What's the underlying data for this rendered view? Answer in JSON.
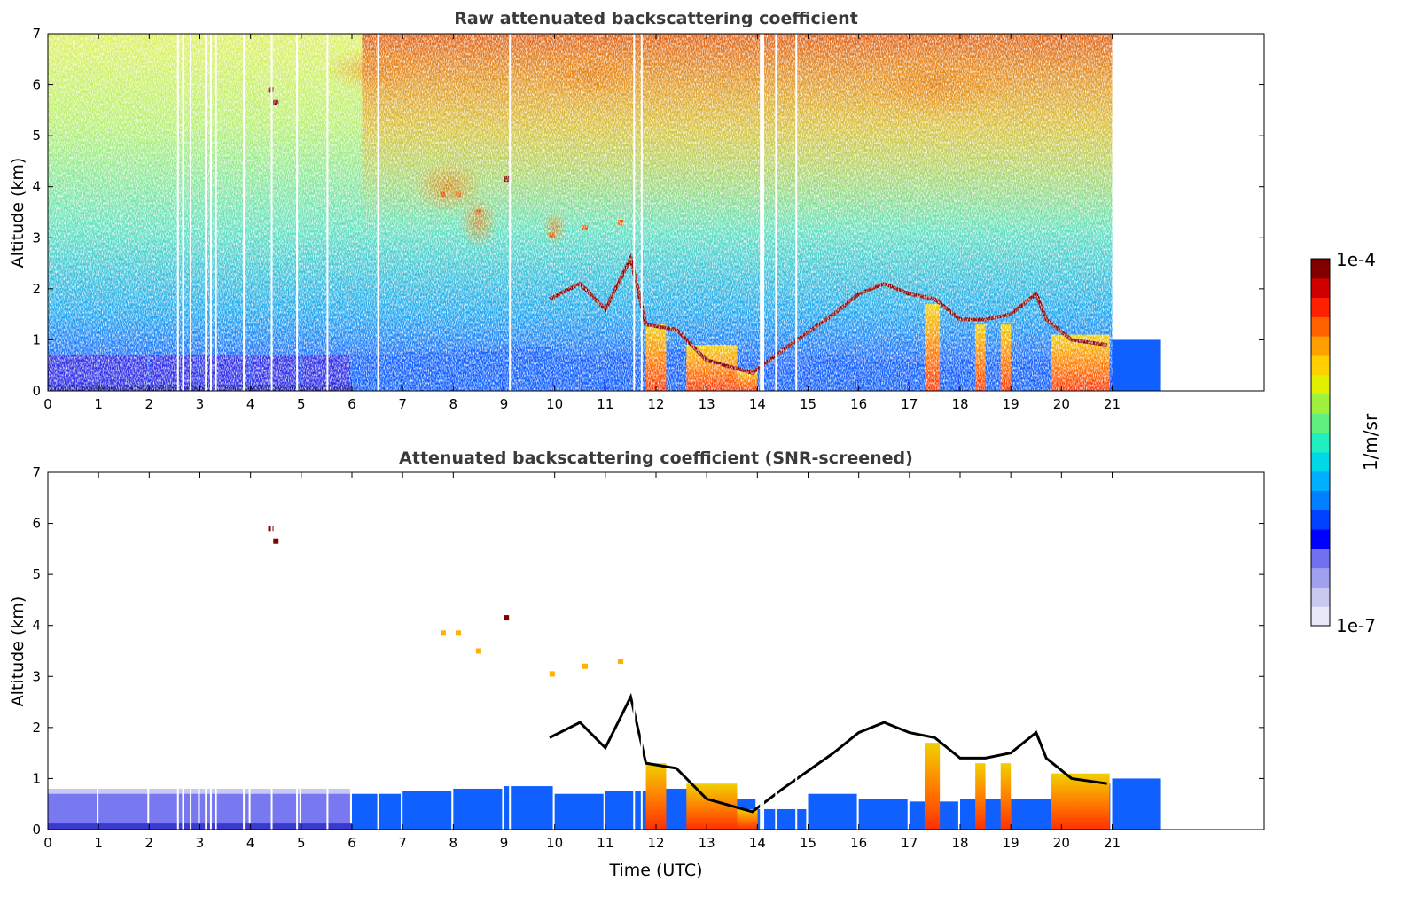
{
  "chart_data": [
    {
      "type": "heatmap",
      "title": "Raw attenuated backscattering coefficient",
      "xlabel": "",
      "ylabel": "Altitude (km)",
      "xlim": [
        0,
        24
      ],
      "ylim": [
        0,
        7
      ],
      "x_ticks": [
        "0",
        "1",
        "2",
        "3",
        "4",
        "5",
        "6",
        "7",
        "8",
        "9",
        "10",
        "11",
        "12",
        "13",
        "14",
        "15",
        "16",
        "17",
        "18",
        "19",
        "20",
        "21"
      ],
      "y_ticks": [
        "0",
        "1",
        "2",
        "3",
        "4",
        "5",
        "6",
        "7"
      ],
      "data_end_time": 21,
      "grid": false,
      "surface_layer_top_km": [
        0.7,
        0.7,
        0.7,
        0.7,
        0.7,
        0.7,
        0.7,
        0.75,
        0.8,
        0.85,
        0.7,
        0.75,
        0.8,
        0.6,
        0.4,
        0.7,
        0.6,
        0.55,
        0.6,
        0.6,
        0.9,
        1.0
      ],
      "cloud_layer": [
        [
          9.9,
          1.8
        ],
        [
          10.5,
          2.1
        ],
        [
          11.0,
          1.6
        ],
        [
          11.5,
          2.6
        ],
        [
          11.8,
          1.3
        ],
        [
          12.4,
          1.2
        ],
        [
          13.0,
          0.6
        ],
        [
          13.9,
          0.35
        ],
        [
          14.5,
          0.8
        ],
        [
          15.5,
          1.5
        ],
        [
          16.0,
          1.9
        ],
        [
          16.5,
          2.1
        ],
        [
          17.0,
          1.9
        ],
        [
          17.5,
          1.8
        ],
        [
          18.0,
          1.4
        ],
        [
          18.5,
          1.4
        ],
        [
          19.0,
          1.5
        ],
        [
          19.5,
          1.9
        ],
        [
          19.7,
          1.4
        ],
        [
          20.2,
          1.0
        ],
        [
          20.9,
          0.9
        ]
      ],
      "elevated_aerosol_points": [
        [
          4.4,
          5.9
        ],
        [
          4.5,
          5.65
        ],
        [
          7.8,
          3.85
        ],
        [
          8.1,
          3.85
        ],
        [
          8.5,
          3.5
        ],
        [
          9.05,
          4.15
        ],
        [
          9.95,
          3.05
        ],
        [
          10.6,
          3.2
        ],
        [
          11.3,
          3.3
        ]
      ]
    },
    {
      "type": "heatmap",
      "title": "Attenuated backscattering coefficient (SNR-screened)",
      "xlabel": "Time (UTC)",
      "ylabel": "Altitude (km)",
      "xlim": [
        0,
        24
      ],
      "ylim": [
        0,
        7
      ],
      "x_ticks": [
        "0",
        "1",
        "2",
        "3",
        "4",
        "5",
        "6",
        "7",
        "8",
        "9",
        "10",
        "11",
        "12",
        "13",
        "14",
        "15",
        "16",
        "17",
        "18",
        "19",
        "20",
        "21"
      ],
      "y_ticks": [
        "0",
        "1",
        "2",
        "3",
        "4",
        "5",
        "6",
        "7"
      ],
      "data_end_time": 21,
      "grid": false
    }
  ],
  "colorbar": {
    "label": "1/m/sr",
    "max_label": "1e-4",
    "min_label": "1e-7",
    "scale": "log",
    "colormap": "jet",
    "colors": [
      "#e8e8f8",
      "#c8c8f0",
      "#a0a0f0",
      "#7070f0",
      "#0000ff",
      "#0040ff",
      "#0080ff",
      "#00b0ff",
      "#00d8e8",
      "#20f0c0",
      "#60f080",
      "#a0f040",
      "#e0f000",
      "#ffd000",
      "#ffa000",
      "#ff6000",
      "#ff2000",
      "#d00000",
      "#800000"
    ]
  }
}
